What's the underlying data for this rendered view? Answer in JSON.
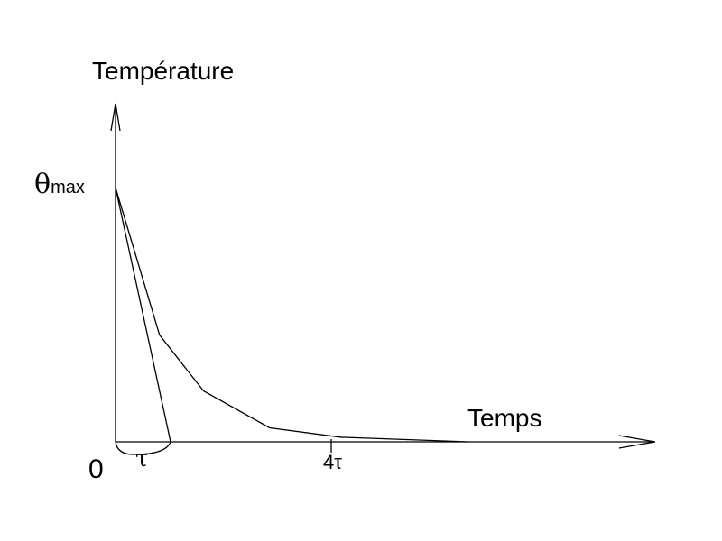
{
  "chart_data": {
    "type": "line",
    "title": "",
    "ylabel": "Température",
    "xlabel": "Temps",
    "y_max_label_symbol": "θ",
    "y_max_label_sub": "max",
    "origin_label": "0",
    "tau_label": "τ",
    "tick_4tau_label": "4τ",
    "series": [
      {
        "x": [
          0,
          0.8,
          1.6,
          2.8,
          4.1,
          6.4
        ],
        "y": [
          1.0,
          0.42,
          0.2,
          0.055,
          0.018,
          0.0
        ]
      },
      {
        "x": [
          0,
          1
        ],
        "y": [
          1.0,
          0.0
        ]
      }
    ],
    "tick_x": 4,
    "xlim": [
      0,
      9.8
    ],
    "ylim": [
      0,
      1.33
    ],
    "grid": false,
    "axis_color": "#000000"
  }
}
